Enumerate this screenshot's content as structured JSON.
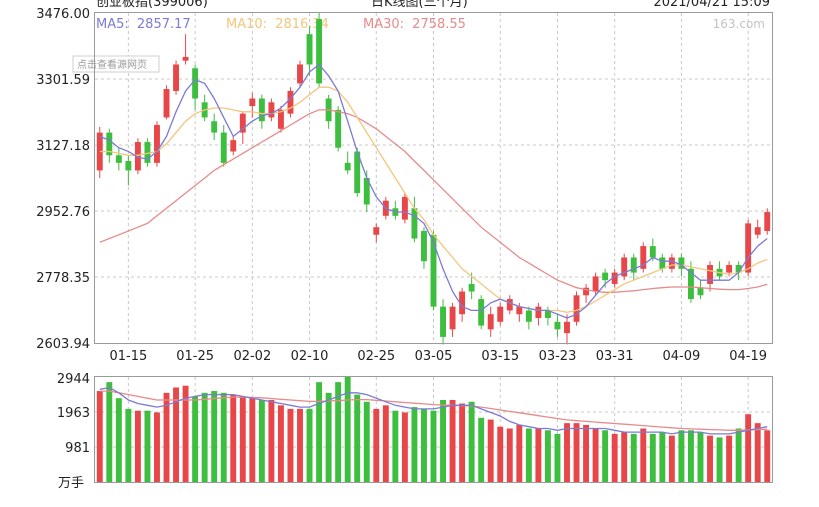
{
  "header": {
    "index_name": "创业板指(399006)",
    "chart_title": "日K线图(三个月)",
    "datetime": "2021/04/21 15:09"
  },
  "legend": {
    "ma5": {
      "label": "MA5:",
      "value": "2857.17",
      "color": "#7b7bd6"
    },
    "ma10": {
      "label": "MA10:",
      "value": "2816.34",
      "color": "#f3c67c"
    },
    "ma30": {
      "label": "MA30:",
      "value": "2758.55",
      "color": "#e88a8a"
    }
  },
  "watermark": "163.com",
  "note_button": "点击查看源网页",
  "colors": {
    "up": "#e8474a",
    "down": "#3ebe3e",
    "grid": "#c8c8c8"
  },
  "chart_data": [
    {
      "type": "candlestick",
      "yticks": [
        "3476.00",
        "3301.59",
        "3127.18",
        "2952.76",
        "2778.35",
        "2603.94"
      ],
      "ylim": [
        2603.94,
        3476.0
      ],
      "xticks": [
        "01-15",
        "01-25",
        "02-02",
        "02-10",
        "02-25",
        "03-05",
        "03-15",
        "03-23",
        "03-31",
        "04-09",
        "04-19"
      ],
      "xtick_index": [
        3,
        10,
        16,
        22,
        29,
        35,
        42,
        48,
        54,
        61,
        68
      ],
      "grid": true,
      "candles": [
        [
          3060,
          3160,
          3040,
          3175
        ],
        [
          3160,
          3100,
          3080,
          3170
        ],
        [
          3100,
          3080,
          3060,
          3120
        ],
        [
          3085,
          3060,
          3020,
          3100
        ],
        [
          3060,
          3135,
          3050,
          3145
        ],
        [
          3135,
          3080,
          3070,
          3145
        ],
        [
          3080,
          3180,
          3070,
          3190
        ],
        [
          3200,
          3275,
          3195,
          3285
        ],
        [
          3270,
          3340,
          3260,
          3350
        ],
        [
          3350,
          3360,
          3340,
          3420
        ],
        [
          3330,
          3250,
          3220,
          3340
        ],
        [
          3240,
          3200,
          3190,
          3260
        ],
        [
          3190,
          3160,
          3140,
          3210
        ],
        [
          3160,
          3080,
          3070,
          3180
        ],
        [
          3110,
          3140,
          3100,
          3150
        ],
        [
          3160,
          3210,
          3130,
          3215
        ],
        [
          3230,
          3250,
          3200,
          3265
        ],
        [
          3250,
          3190,
          3170,
          3260
        ],
        [
          3200,
          3240,
          3190,
          3250
        ],
        [
          3170,
          3220,
          3160,
          3230
        ],
        [
          3210,
          3270,
          3200,
          3280
        ],
        [
          3290,
          3340,
          3280,
          3350
        ],
        [
          3420,
          3340,
          3310,
          3440
        ],
        [
          3460,
          3290,
          3280,
          3476
        ],
        [
          3250,
          3190,
          3170,
          3260
        ],
        [
          3220,
          3120,
          3110,
          3230
        ],
        [
          3080,
          3060,
          3050,
          3110
        ],
        [
          3110,
          3000,
          2990,
          3120
        ],
        [
          3040,
          2970,
          2950,
          3060
        ],
        [
          2890,
          2910,
          2870,
          2920
        ],
        [
          2940,
          2980,
          2930,
          2990
        ],
        [
          2960,
          2940,
          2930,
          2980
        ],
        [
          2930,
          2990,
          2920,
          3000
        ],
        [
          2960,
          2880,
          2870,
          2990
        ],
        [
          2900,
          2820,
          2800,
          2910
        ],
        [
          2890,
          2700,
          2690,
          2900
        ],
        [
          2700,
          2620,
          2600,
          2720
        ],
        [
          2640,
          2700,
          2620,
          2710
        ],
        [
          2680,
          2740,
          2660,
          2750
        ],
        [
          2760,
          2740,
          2720,
          2790
        ],
        [
          2720,
          2650,
          2640,
          2730
        ],
        [
          2640,
          2680,
          2620,
          2700
        ],
        [
          2660,
          2700,
          2650,
          2710
        ],
        [
          2690,
          2720,
          2680,
          2730
        ],
        [
          2680,
          2700,
          2660,
          2710
        ],
        [
          2690,
          2660,
          2640,
          2700
        ],
        [
          2670,
          2700,
          2650,
          2710
        ],
        [
          2690,
          2670,
          2650,
          2700
        ],
        [
          2660,
          2640,
          2620,
          2680
        ],
        [
          2630,
          2660,
          2600,
          2680
        ],
        [
          2660,
          2730,
          2650,
          2740
        ],
        [
          2730,
          2750,
          2710,
          2760
        ],
        [
          2740,
          2780,
          2730,
          2790
        ],
        [
          2790,
          2770,
          2750,
          2800
        ],
        [
          2760,
          2790,
          2750,
          2800
        ],
        [
          2780,
          2830,
          2770,
          2840
        ],
        [
          2830,
          2790,
          2770,
          2840
        ],
        [
          2800,
          2860,
          2790,
          2870
        ],
        [
          2860,
          2830,
          2820,
          2880
        ],
        [
          2830,
          2800,
          2790,
          2840
        ],
        [
          2800,
          2830,
          2790,
          2840
        ],
        [
          2830,
          2800,
          2780,
          2840
        ],
        [
          2800,
          2720,
          2710,
          2820
        ],
        [
          2750,
          2730,
          2720,
          2770
        ],
        [
          2760,
          2810,
          2740,
          2820
        ],
        [
          2800,
          2780,
          2770,
          2820
        ],
        [
          2790,
          2810,
          2780,
          2820
        ],
        [
          2810,
          2790,
          2770,
          2820
        ],
        [
          2790,
          2920,
          2780,
          2930
        ],
        [
          2890,
          2910,
          2880,
          2930
        ],
        [
          2900,
          2950,
          2890,
          2960
        ]
      ],
      "ma5": [
        3150,
        3140,
        3120,
        3110,
        3095,
        3090,
        3110,
        3150,
        3215,
        3270,
        3300,
        3290,
        3250,
        3200,
        3150,
        3170,
        3190,
        3205,
        3210,
        3225,
        3250,
        3280,
        3320,
        3340,
        3310,
        3270,
        3190,
        3110,
        3040,
        2990,
        2960,
        2950,
        2950,
        2940,
        2920,
        2870,
        2800,
        2740,
        2700,
        2690,
        2690,
        2710,
        2720,
        2710,
        2700,
        2695,
        2690,
        2690,
        2680,
        2670,
        2680,
        2700,
        2730,
        2760,
        2780,
        2790,
        2800,
        2810,
        2830,
        2820,
        2820,
        2810,
        2790,
        2770,
        2770,
        2770,
        2770,
        2790,
        2830,
        2860,
        2880
      ],
      "ma10": [
        3110,
        3110,
        3105,
        3100,
        3100,
        3105,
        3110,
        3130,
        3160,
        3190,
        3210,
        3220,
        3225,
        3225,
        3220,
        3215,
        3215,
        3210,
        3210,
        3215,
        3225,
        3240,
        3260,
        3280,
        3280,
        3270,
        3240,
        3200,
        3160,
        3120,
        3080,
        3040,
        3000,
        2960,
        2930,
        2890,
        2860,
        2830,
        2800,
        2780,
        2760,
        2740,
        2720,
        2710,
        2700,
        2695,
        2690,
        2690,
        2690,
        2685,
        2690,
        2700,
        2715,
        2730,
        2745,
        2760,
        2770,
        2780,
        2790,
        2800,
        2810,
        2810,
        2805,
        2800,
        2795,
        2790,
        2785,
        2790,
        2800,
        2815,
        2825
      ],
      "ma30": [
        2870,
        2880,
        2890,
        2900,
        2910,
        2920,
        2940,
        2960,
        2980,
        3000,
        3020,
        3040,
        3060,
        3075,
        3090,
        3105,
        3120,
        3135,
        3150,
        3165,
        3180,
        3195,
        3210,
        3220,
        3220,
        3215,
        3210,
        3200,
        3185,
        3170,
        3150,
        3130,
        3110,
        3085,
        3060,
        3035,
        3010,
        2985,
        2960,
        2935,
        2910,
        2890,
        2870,
        2850,
        2830,
        2815,
        2800,
        2785,
        2770,
        2760,
        2750,
        2745,
        2740,
        2738,
        2738,
        2740,
        2742,
        2745,
        2748,
        2750,
        2752,
        2752,
        2752,
        2750,
        2748,
        2746,
        2745,
        2745,
        2748,
        2752,
        2759
      ]
    },
    {
      "type": "bar",
      "yticks": [
        "2944",
        "1963",
        "981"
      ],
      "ylim": [
        0,
        2944
      ],
      "unit": "万手",
      "grid": true,
      "volumes": [
        2550,
        2800,
        2350,
        2050,
        2000,
        2000,
        1950,
        2500,
        2650,
        2700,
        2400,
        2500,
        2550,
        2500,
        2450,
        2400,
        2350,
        2300,
        2300,
        2150,
        2050,
        2050,
        2050,
        2800,
        2500,
        2800,
        2944,
        2450,
        2250,
        2050,
        2150,
        2000,
        1950,
        2100,
        2050,
        2000,
        2300,
        2300,
        2200,
        2250,
        1800,
        1750,
        1550,
        1500,
        1600,
        1500,
        1500,
        1450,
        1350,
        1650,
        1650,
        1600,
        1500,
        1450,
        1350,
        1400,
        1350,
        1500,
        1350,
        1400,
        1300,
        1450,
        1450,
        1400,
        1300,
        1250,
        1300,
        1500,
        1900,
        1650,
        1450
      ],
      "vol_ma5": [
        2600,
        2650,
        2500,
        2300,
        2200,
        2150,
        2100,
        2150,
        2250,
        2350,
        2400,
        2450,
        2450,
        2450,
        2450,
        2400,
        2350,
        2300,
        2250,
        2200,
        2150,
        2100,
        2100,
        2200,
        2300,
        2400,
        2500,
        2500,
        2450,
        2350,
        2250,
        2150,
        2100,
        2050,
        2050,
        2050,
        2100,
        2150,
        2150,
        2150,
        2050,
        1950,
        1850,
        1700,
        1600,
        1550,
        1500,
        1500,
        1450,
        1500,
        1500,
        1500,
        1500,
        1500,
        1450,
        1400,
        1400,
        1400,
        1400,
        1400,
        1350,
        1400,
        1400,
        1400,
        1350,
        1350,
        1350,
        1400,
        1450,
        1500,
        1550
      ],
      "vol_ma10": [
        2550,
        2550,
        2500,
        2450,
        2400,
        2350,
        2300,
        2300,
        2300,
        2300,
        2300,
        2320,
        2340,
        2360,
        2380,
        2380,
        2370,
        2360,
        2340,
        2320,
        2300,
        2280,
        2260,
        2260,
        2270,
        2280,
        2300,
        2310,
        2310,
        2290,
        2270,
        2250,
        2230,
        2210,
        2190,
        2170,
        2160,
        2150,
        2140,
        2130,
        2100,
        2060,
        2020,
        1980,
        1940,
        1900,
        1860,
        1820,
        1780,
        1740,
        1720,
        1700,
        1680,
        1660,
        1640,
        1620,
        1600,
        1580,
        1560,
        1540,
        1520,
        1500,
        1490,
        1480,
        1470,
        1460,
        1450,
        1450,
        1460,
        1470,
        1480
      ]
    }
  ]
}
